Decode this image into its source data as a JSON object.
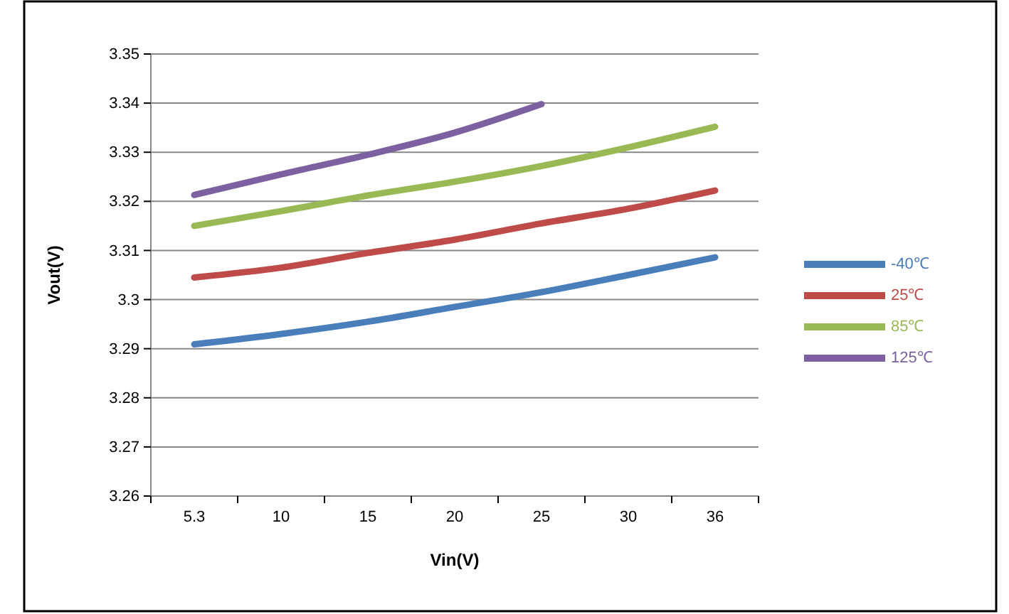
{
  "chart_data": {
    "type": "line",
    "xlabel": "Vin(V)",
    "ylabel": "Vout(V)",
    "categories": [
      "5.3",
      "10",
      "15",
      "20",
      "25",
      "30",
      "36"
    ],
    "ylim": [
      3.26,
      3.35
    ],
    "yticks": [
      3.26,
      3.27,
      3.28,
      3.29,
      3.3,
      3.31,
      3.32,
      3.33,
      3.34,
      3.35
    ],
    "grid": "y",
    "legend": "right",
    "series": [
      {
        "name": "-40℃",
        "color": "#4a7ebb",
        "values": [
          3.2909,
          3.293,
          3.2955,
          3.2985,
          3.3015,
          3.305,
          3.3086
        ]
      },
      {
        "name": "25℃",
        "color": "#be4b48",
        "values": [
          3.3045,
          3.3065,
          3.3095,
          3.3122,
          3.3155,
          3.3185,
          3.3222
        ]
      },
      {
        "name": "85℃",
        "color": "#98b954",
        "values": [
          3.315,
          3.318,
          3.3212,
          3.324,
          3.3272,
          3.331,
          3.3352
        ]
      },
      {
        "name": "125℃",
        "color": "#7d60a0",
        "values": [
          3.3213,
          3.3255,
          3.3295,
          3.334,
          3.3398,
          null,
          null
        ]
      }
    ]
  }
}
